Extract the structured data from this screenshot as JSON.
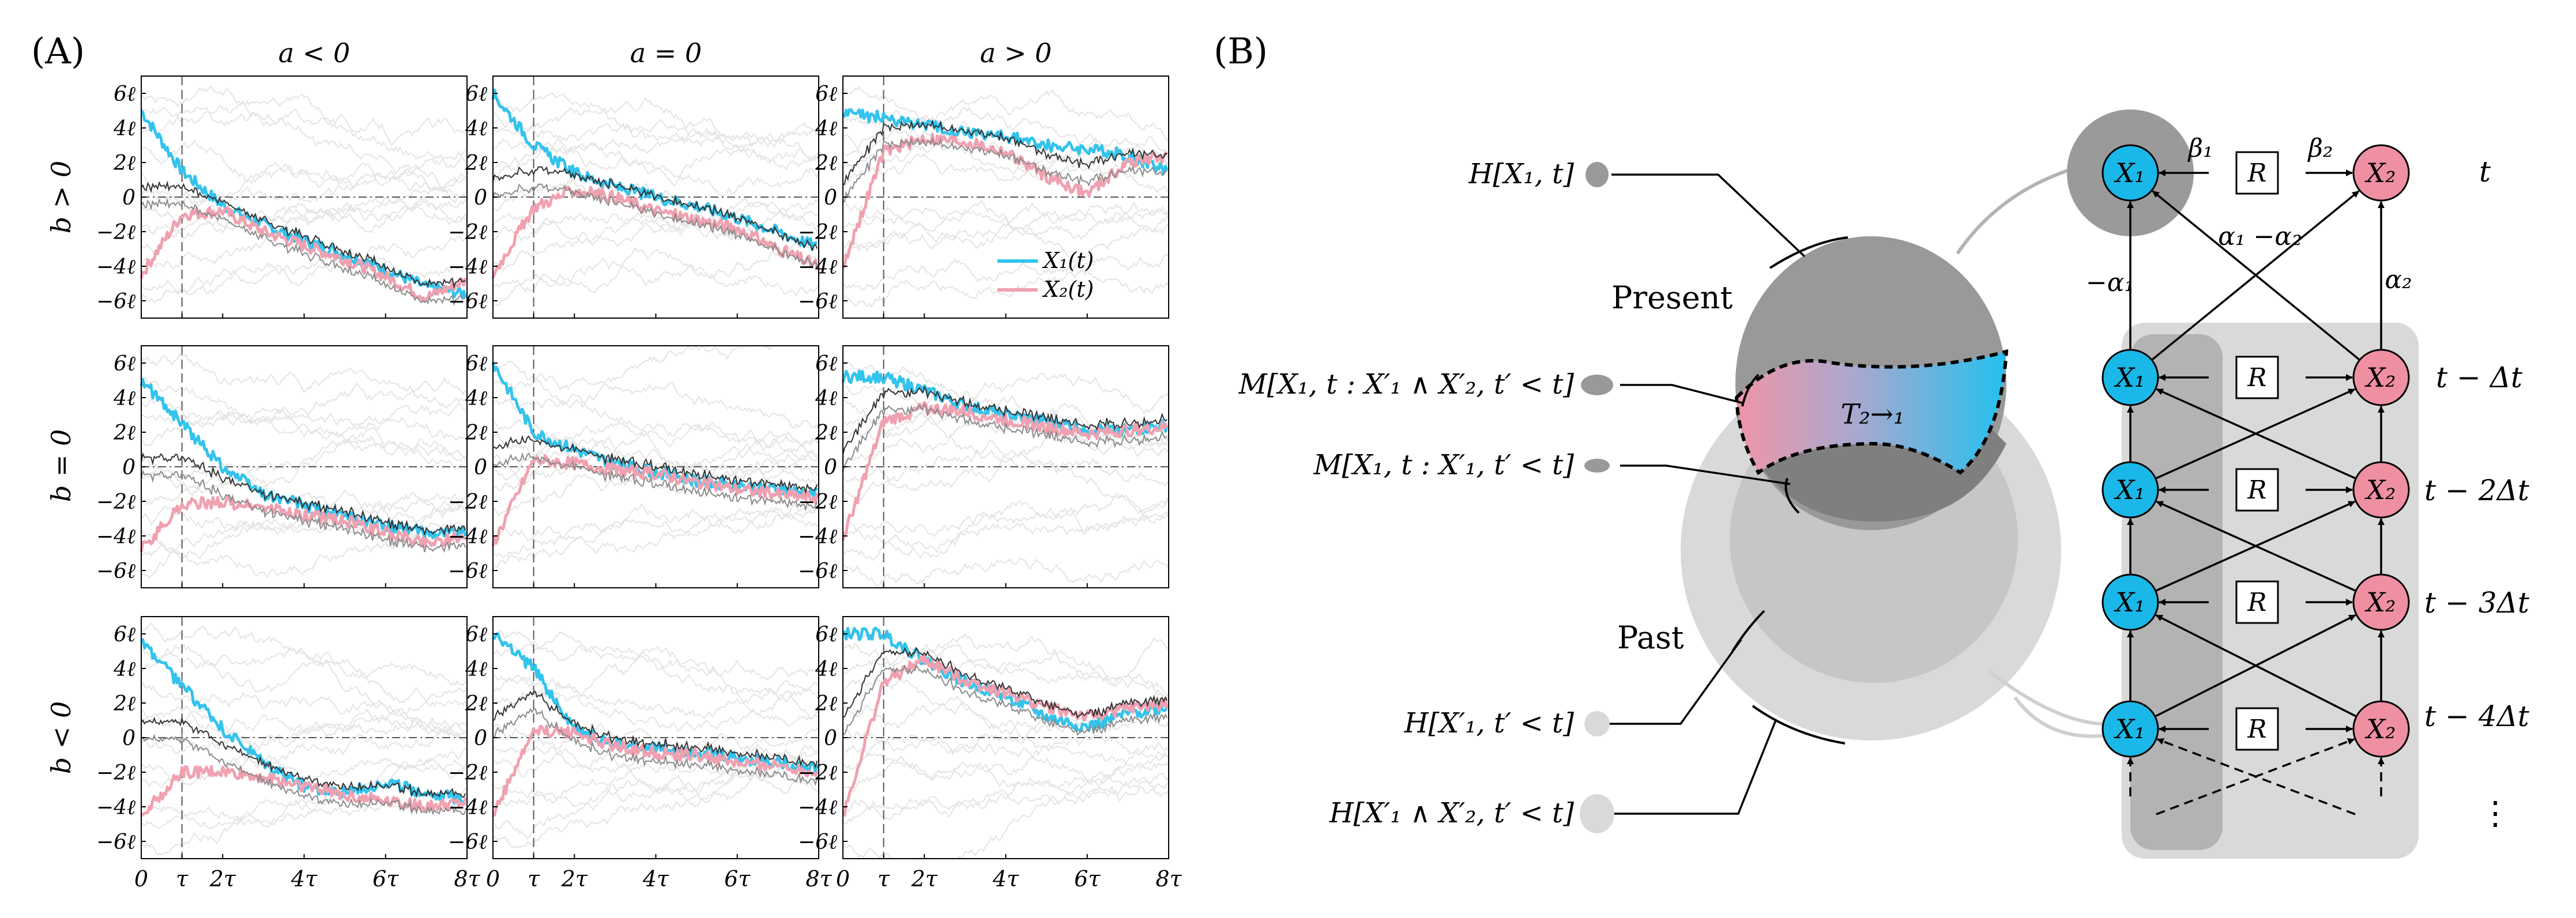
{
  "panelA": {
    "label": "(A)",
    "col_titles": [
      "a < 0",
      "a = 0",
      "a > 0"
    ],
    "row_titles": [
      "b > 0",
      "b = 0",
      "b < 0"
    ],
    "y_tick_labels": [
      "6ℓ",
      "4ℓ",
      "2ℓ",
      "0",
      "−2ℓ",
      "−4ℓ",
      "−6ℓ"
    ],
    "x_tick_labels": [
      "0",
      "τ",
      "2τ",
      "4τ",
      "6τ",
      "8τ"
    ],
    "legend": [
      "X₁(t)",
      "X₂(t)"
    ]
  },
  "panelB": {
    "label": "(B)",
    "left_labels": {
      "h_present": "H[X₁, t]",
      "m_joint": "M[X₁, t : X′₁ ∧ X′₂, t′ < t]",
      "m_single": "M[X₁, t : X′₁, t′ < t]",
      "h_past": "H[X′₁, t′ < t]",
      "h_joint_past": "H[X′₁ ∧ X′₂, t′ < t]"
    },
    "present_label": "Present",
    "past_label": "Past",
    "transfer_label": "T₂→₁",
    "node_x1": "X₁",
    "node_x2": "X₂",
    "r_label": "R",
    "beta1": "β₁",
    "beta2": "β₂",
    "alpha_neg1": "−α₁",
    "alpha_diff": "α₁ −α₂",
    "alpha2": "α₂",
    "time_labels": [
      "t",
      "t − Δt",
      "t − 2Δt",
      "t − 3Δt",
      "t − 4Δt"
    ],
    "ellipsis": "⋮"
  },
  "chart_data": [
    {
      "type": "line",
      "title": "a < 0, b > 0",
      "x": [
        0,
        1,
        2,
        3,
        4,
        5,
        6,
        7,
        8
      ],
      "ylim": [
        -7,
        7
      ],
      "xlabel": "",
      "ylabel": "b > 0",
      "series": [
        {
          "name": "X₁(t)",
          "values": [
            5,
            1.5,
            -0.5,
            -1.6,
            -2.5,
            -3.3,
            -4.2,
            -5.2,
            -5.6
          ]
        },
        {
          "name": "X₂(t)",
          "values": [
            -4.5,
            -1,
            -0.8,
            -2,
            -2.8,
            -3.6,
            -4.6,
            -5.8,
            -4.8
          ]
        }
      ]
    },
    {
      "type": "line",
      "title": "a = 0, b > 0",
      "x": [
        0,
        1,
        2,
        3,
        4,
        5,
        6,
        7,
        8
      ],
      "ylim": [
        -7,
        7
      ],
      "xlabel": "",
      "ylabel": "",
      "series": [
        {
          "name": "X₁(t)",
          "values": [
            6,
            3,
            1.4,
            0.6,
            0,
            -0.5,
            -1.2,
            -2,
            -2.9
          ]
        },
        {
          "name": "X₂(t)",
          "values": [
            -4.5,
            -0.6,
            0.4,
            0,
            -0.8,
            -1.3,
            -1.8,
            -3,
            -4
          ]
        }
      ]
    },
    {
      "type": "line",
      "title": "a > 0, b > 0",
      "x": [
        0,
        1,
        2,
        3,
        4,
        5,
        6,
        7,
        8
      ],
      "ylim": [
        -7,
        7
      ],
      "xlabel": "",
      "ylabel": "",
      "series": [
        {
          "name": "X₁(t)",
          "values": [
            4.8,
            4.6,
            4.2,
            3.8,
            3.5,
            3,
            2.8,
            2.4,
            1.5
          ]
        },
        {
          "name": "X₂(t)",
          "values": [
            -4,
            2.6,
            3.4,
            3.2,
            2.6,
            1.2,
            0.2,
            2,
            2.4
          ]
        }
      ]
    },
    {
      "type": "line",
      "title": "a < 0, b = 0",
      "x": [
        0,
        1,
        2,
        3,
        4,
        5,
        6,
        7,
        8
      ],
      "ylim": [
        -7,
        7
      ],
      "xlabel": "",
      "ylabel": "b = 0",
      "series": [
        {
          "name": "X₁(t)",
          "values": [
            5,
            2.5,
            0,
            -1.6,
            -2.2,
            -2.9,
            -3.4,
            -3.8,
            -3.8
          ]
        },
        {
          "name": "X₂(t)",
          "values": [
            -4.8,
            -2.2,
            -2,
            -2.4,
            -2.8,
            -3.1,
            -3.8,
            -4.4,
            -4
          ]
        }
      ]
    },
    {
      "type": "line",
      "title": "a = 0, b = 0",
      "x": [
        0,
        1,
        2,
        3,
        4,
        5,
        6,
        7,
        8
      ],
      "ylim": [
        -7,
        7
      ],
      "xlabel": "",
      "ylabel": "",
      "series": [
        {
          "name": "X₁(t)",
          "values": [
            6,
            2,
            1,
            0.2,
            -0.3,
            -0.8,
            -1.1,
            -1.3,
            -1.6
          ]
        },
        {
          "name": "X₂(t)",
          "values": [
            -4.5,
            0.4,
            0.2,
            -0.2,
            -0.4,
            -0.9,
            -1.3,
            -1.6,
            -1.8
          ]
        }
      ]
    },
    {
      "type": "line",
      "title": "a > 0, b = 0",
      "x": [
        0,
        1,
        2,
        3,
        4,
        5,
        6,
        7,
        8
      ],
      "ylim": [
        -7,
        7
      ],
      "xlabel": "",
      "ylabel": "",
      "series": [
        {
          "name": "X₁(t)",
          "values": [
            5.2,
            5.2,
            4.4,
            3.5,
            3,
            2.6,
            2.2,
            2.1,
            2.4
          ]
        },
        {
          "name": "X₂(t)",
          "values": [
            -4.2,
            2.6,
            3.4,
            3.2,
            2.7,
            2.3,
            1.9,
            2.1,
            2.3
          ]
        }
      ]
    },
    {
      "type": "line",
      "title": "a < 0, b < 0",
      "x": [
        0,
        1,
        2,
        3,
        4,
        5,
        6,
        7,
        8
      ],
      "ylim": [
        -7,
        7
      ],
      "xlabel": "0 τ 2τ 4τ 6τ 8τ",
      "ylabel": "b < 0",
      "series": [
        {
          "name": "X₁(t)",
          "values": [
            5.5,
            3,
            0.5,
            -1.5,
            -2.8,
            -3.2,
            -2.6,
            -3.2,
            -3.6
          ]
        },
        {
          "name": "X₂(t)",
          "values": [
            -4.5,
            -2,
            -2,
            -2.3,
            -2.8,
            -3.3,
            -3.6,
            -4,
            -3.8
          ]
        }
      ]
    },
    {
      "type": "line",
      "title": "a = 0, b < 0",
      "x": [
        0,
        1,
        2,
        3,
        4,
        5,
        6,
        7,
        8
      ],
      "ylim": [
        -7,
        7
      ],
      "xlabel": "0 τ 2τ 4τ 6τ 8τ",
      "ylabel": "",
      "series": [
        {
          "name": "X₁(t)",
          "values": [
            6,
            4,
            0.5,
            -0.4,
            -0.6,
            -0.8,
            -1.2,
            -1.4,
            -1.8
          ]
        },
        {
          "name": "X₂(t)",
          "values": [
            -4.5,
            0.4,
            0.3,
            -0.5,
            -0.9,
            -1,
            -1.5,
            -1.6,
            -2
          ]
        }
      ]
    },
    {
      "type": "line",
      "title": "a > 0, b < 0",
      "x": [
        0,
        1,
        2,
        3,
        4,
        5,
        6,
        7,
        8
      ],
      "ylim": [
        -7,
        7
      ],
      "xlabel": "0 τ 2τ 4τ 6τ 8τ",
      "ylabel": "",
      "series": [
        {
          "name": "X₁(t)",
          "values": [
            6,
            6,
            4.5,
            3.2,
            2.4,
            1.2,
            0.6,
            1.4,
            1.8
          ]
        },
        {
          "name": "X₂(t)",
          "values": [
            -4.5,
            3.2,
            4.5,
            3.3,
            2.6,
            1.8,
            1.2,
            1.7,
            2
          ]
        }
      ]
    }
  ],
  "colors": {
    "x1": "#33c3ec",
    "x2": "#f0a1b0",
    "node_x1": "#1ab8e8",
    "node_x2": "#ef8fa2"
  }
}
